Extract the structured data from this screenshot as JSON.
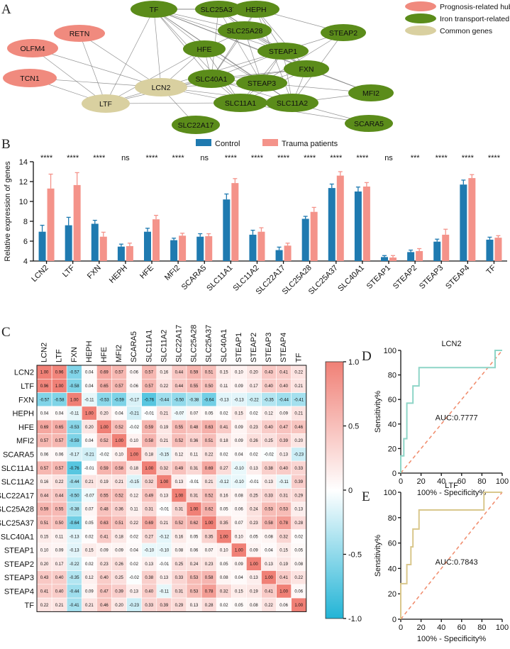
{
  "chart_data": [
    {
      "type": "network",
      "panel_label": "A",
      "legend": [
        {
          "label": "Prognosis-related hub genes",
          "color": "#f08a7e"
        },
        {
          "label": "Iron transport-related genes",
          "color": "#5b8c1a"
        },
        {
          "label": "Common genes",
          "color": "#d9d0a0"
        }
      ],
      "nodes": [
        {
          "id": "TF",
          "group": "iron"
        },
        {
          "id": "SLC25A37",
          "group": "iron"
        },
        {
          "id": "HEPH",
          "group": "iron"
        },
        {
          "id": "RETN",
          "group": "hub"
        },
        {
          "id": "SLC25A28",
          "group": "iron"
        },
        {
          "id": "STEAP2",
          "group": "iron"
        },
        {
          "id": "OLFM4",
          "group": "hub"
        },
        {
          "id": "HFE",
          "group": "iron"
        },
        {
          "id": "STEAP1",
          "group": "iron"
        },
        {
          "id": "TCN1",
          "group": "hub"
        },
        {
          "id": "LCN2",
          "group": "common"
        },
        {
          "id": "SLC40A1",
          "group": "iron"
        },
        {
          "id": "FXN",
          "group": "iron"
        },
        {
          "id": "STEAP3",
          "group": "iron"
        },
        {
          "id": "MFI2",
          "group": "iron"
        },
        {
          "id": "LTF",
          "group": "common"
        },
        {
          "id": "SLC11A1",
          "group": "iron"
        },
        {
          "id": "SLC11A2",
          "group": "iron"
        },
        {
          "id": "SLC22A17",
          "group": "iron"
        },
        {
          "id": "SCARA5",
          "group": "iron"
        }
      ],
      "edges": [
        [
          "RETN",
          "LCN2"
        ],
        [
          "RETN",
          "LTF"
        ],
        [
          "OLFM4",
          "LCN2"
        ],
        [
          "OLFM4",
          "LTF"
        ],
        [
          "TCN1",
          "LCN2"
        ],
        [
          "TCN1",
          "LTF"
        ],
        [
          "LCN2",
          "LTF"
        ],
        [
          "LCN2",
          "SLC22A17"
        ],
        [
          "LCN2",
          "HFE"
        ],
        [
          "LCN2",
          "SLC40A1"
        ],
        [
          "LCN2",
          "STEAP3"
        ],
        [
          "LCN2",
          "SLC11A1"
        ],
        [
          "LCN2",
          "SLC11A2"
        ],
        [
          "LCN2",
          "TF"
        ],
        [
          "LCN2",
          "FXN"
        ],
        [
          "LCN2",
          "STEAP1"
        ],
        [
          "LTF",
          "SLC11A1"
        ],
        [
          "LTF",
          "TF"
        ],
        [
          "LTF",
          "SLC40A1"
        ],
        [
          "LTF",
          "HFE"
        ],
        [
          "TF",
          "SLC25A37"
        ],
        [
          "TF",
          "HEPH"
        ],
        [
          "TF",
          "SLC25A28"
        ],
        [
          "TF",
          "HFE"
        ],
        [
          "TF",
          "SLC40A1"
        ],
        [
          "TF",
          "STEAP3"
        ],
        [
          "TF",
          "STEAP1"
        ],
        [
          "TF",
          "SLC11A1"
        ],
        [
          "TF",
          "SLC11A2"
        ],
        [
          "TF",
          "FXN"
        ],
        [
          "TF",
          "MFI2"
        ],
        [
          "SLC25A37",
          "HEPH"
        ],
        [
          "SLC25A37",
          "SLC25A28"
        ],
        [
          "SLC25A37",
          "STEAP1"
        ],
        [
          "SLC25A37",
          "FXN"
        ],
        [
          "SLC25A37",
          "SLC40A1"
        ],
        [
          "SLC25A37",
          "STEAP3"
        ],
        [
          "HEPH",
          "SLC25A28"
        ],
        [
          "HEPH",
          "STEAP1"
        ],
        [
          "HEPH",
          "STEAP2"
        ],
        [
          "HEPH",
          "FXN"
        ],
        [
          "HEPH",
          "SLC40A1"
        ],
        [
          "HEPH",
          "SLC11A2"
        ],
        [
          "SLC25A28",
          "STEAP1"
        ],
        [
          "SLC25A28",
          "FXN"
        ],
        [
          "SLC25A28",
          "SLC40A1"
        ],
        [
          "SLC25A28",
          "STEAP3"
        ],
        [
          "SLC25A28",
          "HFE"
        ],
        [
          "STEAP2",
          "STEAP1"
        ],
        [
          "STEAP2",
          "STEAP3"
        ],
        [
          "STEAP2",
          "SLC11A2"
        ],
        [
          "HFE",
          "SLC40A1"
        ],
        [
          "HFE",
          "STEAP3"
        ],
        [
          "HFE",
          "SLC11A1"
        ],
        [
          "STEAP1",
          "STEAP3"
        ],
        [
          "STEAP1",
          "SLC40A1"
        ],
        [
          "STEAP1",
          "FXN"
        ],
        [
          "STEAP1",
          "SLC11A2"
        ],
        [
          "STEAP1",
          "SLC11A1"
        ],
        [
          "SLC40A1",
          "STEAP3"
        ],
        [
          "SLC40A1",
          "SLC11A1"
        ],
        [
          "SLC40A1",
          "SLC11A2"
        ],
        [
          "SLC40A1",
          "FXN"
        ],
        [
          "FXN",
          "STEAP3"
        ],
        [
          "FXN",
          "SLC11A2"
        ],
        [
          "FXN",
          "SLC11A1"
        ],
        [
          "STEAP3",
          "SLC11A1"
        ],
        [
          "STEAP3",
          "SLC11A2"
        ],
        [
          "STEAP3",
          "MFI2"
        ],
        [
          "SLC11A1",
          "SLC11A2"
        ],
        [
          "SLC11A2",
          "MFI2"
        ],
        [
          "SLC11A2",
          "SCARA5"
        ],
        [
          "SLC11A1",
          "SCARA5"
        ],
        [
          "FXN",
          "MFI2"
        ]
      ]
    },
    {
      "type": "bar",
      "panel_label": "B",
      "ylabel": "Relative expression of genes",
      "ylim": [
        4,
        14
      ],
      "yticks": [
        4,
        6,
        8,
        10,
        12,
        14
      ],
      "categories": [
        "LCN2",
        "LTF",
        "FXN",
        "HEPH",
        "HFE",
        "MFI2",
        "SCARA5",
        "SLC11A1",
        "SLC11A2",
        "SLC22A17",
        "SLC25A28",
        "SLC25A37",
        "SLC40A1",
        "STEAP1",
        "STEAP2",
        "STEAP3",
        "STEAP4",
        "TF"
      ],
      "significance": [
        "****",
        "****",
        "****",
        "ns",
        "****",
        "****",
        "ns",
        "****",
        "****",
        "****",
        "****",
        "****",
        "****",
        "ns",
        "***",
        "****",
        "****",
        "****"
      ],
      "series": [
        {
          "name": "Control",
          "color": "#1f7ab0",
          "values": [
            6.95,
            7.6,
            7.75,
            5.45,
            6.95,
            6.1,
            6.45,
            10.2,
            6.65,
            5.1,
            8.25,
            11.35,
            11.0,
            4.4,
            4.9,
            5.95,
            11.7,
            6.15
          ],
          "errors": [
            0.65,
            0.8,
            0.35,
            0.25,
            0.35,
            0.2,
            0.3,
            0.55,
            0.45,
            0.3,
            0.25,
            0.4,
            0.45,
            0.15,
            0.2,
            0.25,
            0.45,
            0.25
          ]
        },
        {
          "name": "Trauma patients",
          "color": "#f4938a",
          "values": [
            11.3,
            11.65,
            6.45,
            5.5,
            8.2,
            6.55,
            6.5,
            11.85,
            6.95,
            5.55,
            8.95,
            12.6,
            11.5,
            4.35,
            5.0,
            6.65,
            12.35,
            6.35
          ],
          "errors": [
            1.45,
            1.25,
            0.45,
            0.3,
            0.4,
            0.25,
            0.25,
            0.45,
            0.4,
            0.25,
            0.45,
            0.4,
            0.4,
            0.2,
            0.25,
            0.55,
            0.35,
            0.2
          ]
        }
      ]
    },
    {
      "type": "heatmap",
      "panel_label": "C",
      "labels": [
        "LCN2",
        "LTF",
        "FXN",
        "HEPH",
        "HFE",
        "MFI2",
        "SCARA5",
        "SLC11A1",
        "SLC11A2",
        "SLC22A17",
        "SLC25A28",
        "SLC25A37",
        "SLC40A1",
        "STEAP1",
        "STEAP2",
        "STEAP3",
        "STEAP4",
        "TF"
      ],
      "values": [
        [
          1.0,
          0.96,
          -0.57,
          0.04,
          0.69,
          0.57,
          0.06,
          0.57,
          0.16,
          0.44,
          0.59,
          0.51,
          0.15,
          0.1,
          0.2,
          0.43,
          0.41,
          0.22
        ],
        [
          0.96,
          1.0,
          -0.58,
          0.04,
          0.65,
          0.57,
          0.06,
          0.57,
          0.22,
          0.44,
          0.55,
          0.5,
          0.11,
          0.09,
          0.17,
          0.4,
          0.4,
          0.21
        ],
        [
          -0.57,
          -0.58,
          1.0,
          -0.11,
          -0.53,
          -0.59,
          -0.17,
          -0.76,
          -0.44,
          -0.5,
          -0.38,
          -0.64,
          -0.13,
          -0.13,
          -0.22,
          -0.35,
          -0.44,
          -0.41
        ],
        [
          0.04,
          0.04,
          -0.11,
          1.0,
          0.2,
          0.04,
          -0.21,
          -0.01,
          0.21,
          -0.07,
          0.07,
          0.05,
          0.02,
          0.15,
          0.02,
          0.12,
          0.09,
          0.21
        ],
        [
          0.69,
          0.65,
          -0.53,
          0.2,
          1.0,
          0.52,
          -0.02,
          0.59,
          0.19,
          0.55,
          0.48,
          0.63,
          0.41,
          0.09,
          0.23,
          0.4,
          0.47,
          0.46
        ],
        [
          0.57,
          0.57,
          -0.59,
          0.04,
          0.52,
          1.0,
          0.1,
          0.58,
          0.21,
          0.52,
          0.36,
          0.51,
          0.18,
          0.09,
          0.26,
          0.25,
          0.39,
          0.2
        ],
        [
          0.06,
          0.06,
          -0.17,
          -0.21,
          -0.02,
          0.1,
          1.0,
          0.18,
          -0.15,
          0.12,
          0.11,
          0.22,
          0.02,
          0.04,
          0.02,
          -0.02,
          0.13,
          -0.23
        ],
        [
          0.57,
          0.57,
          -0.76,
          -0.01,
          0.59,
          0.58,
          0.18,
          1.0,
          0.32,
          0.49,
          0.31,
          0.69,
          0.27,
          -0.1,
          0.13,
          0.38,
          0.4,
          0.33
        ],
        [
          0.16,
          0.22,
          -0.44,
          0.21,
          0.19,
          0.21,
          -0.15,
          0.32,
          1.0,
          0.13,
          -0.01,
          0.21,
          -0.12,
          -0.1,
          -0.01,
          0.13,
          -0.11,
          0.39
        ],
        [
          0.44,
          0.44,
          -0.5,
          -0.07,
          0.55,
          0.52,
          0.12,
          0.49,
          0.13,
          1.0,
          0.31,
          0.52,
          0.16,
          0.08,
          0.25,
          0.33,
          0.31,
          0.29
        ],
        [
          0.59,
          0.55,
          -0.38,
          0.07,
          0.48,
          0.36,
          0.11,
          0.31,
          -0.01,
          0.31,
          1.0,
          0.62,
          0.05,
          0.06,
          0.24,
          0.53,
          0.53,
          0.13
        ],
        [
          0.51,
          0.5,
          -0.64,
          0.05,
          0.63,
          0.51,
          0.22,
          0.69,
          0.21,
          0.52,
          0.62,
          1.0,
          0.35,
          0.07,
          0.23,
          0.58,
          0.78,
          0.28
        ],
        [
          0.15,
          0.11,
          -0.13,
          0.02,
          0.41,
          0.18,
          0.02,
          0.27,
          -0.12,
          0.16,
          0.05,
          0.35,
          1.0,
          0.1,
          0.05,
          0.08,
          0.32,
          0.02
        ],
        [
          0.1,
          0.09,
          -0.13,
          0.15,
          0.09,
          0.09,
          0.04,
          -0.1,
          -0.1,
          0.08,
          0.06,
          0.07,
          0.1,
          1.0,
          0.09,
          0.04,
          0.15,
          0.05
        ],
        [
          0.2,
          0.17,
          -0.22,
          0.02,
          0.23,
          0.26,
          0.02,
          0.13,
          -0.01,
          0.25,
          0.24,
          0.23,
          0.05,
          0.09,
          1.0,
          0.13,
          0.19,
          0.08
        ],
        [
          0.43,
          0.4,
          -0.35,
          0.12,
          0.4,
          0.25,
          -0.02,
          0.38,
          0.13,
          0.33,
          0.53,
          0.58,
          0.08,
          0.04,
          0.13,
          1.0,
          0.41,
          0.22
        ],
        [
          0.41,
          0.4,
          -0.44,
          0.09,
          0.47,
          0.39,
          0.13,
          0.4,
          -0.11,
          0.31,
          0.53,
          0.78,
          0.32,
          0.15,
          0.19,
          0.41,
          1.0,
          0.06
        ],
        [
          0.22,
          0.21,
          -0.41,
          0.21,
          0.46,
          0.2,
          -0.23,
          0.33,
          0.39,
          0.29,
          0.13,
          0.28,
          0.02,
          0.05,
          0.08,
          0.22,
          0.06,
          1.0
        ]
      ],
      "colorbar_ticks": [
        "1.0",
        "0.5",
        "0",
        "-0.5",
        "-1.0"
      ],
      "colorbar_range": [
        -1,
        1
      ]
    },
    {
      "type": "roc",
      "panel_label": "D",
      "title": "LCN2",
      "xlabel": "100% - Specificity%",
      "ylabel": "Sensitivity%",
      "xticks": [
        0,
        20,
        40,
        60,
        80,
        100
      ],
      "yticks": [
        0,
        20,
        40,
        60,
        80,
        100
      ],
      "auc_label": "AUC:0.7777",
      "color": "#8ed5c7",
      "points": [
        [
          0,
          0
        ],
        [
          0,
          14
        ],
        [
          3,
          14
        ],
        [
          3,
          28
        ],
        [
          6,
          28
        ],
        [
          6,
          43
        ],
        [
          6,
          57
        ],
        [
          12,
          57
        ],
        [
          12,
          71
        ],
        [
          18,
          71
        ],
        [
          18,
          86
        ],
        [
          24,
          86
        ],
        [
          93,
          86
        ],
        [
          93,
          100
        ],
        [
          100,
          100
        ]
      ]
    },
    {
      "type": "roc",
      "panel_label": "E",
      "title": "LTF",
      "xlabel": "100% - Specificity%",
      "ylabel": "Sensitivity%",
      "xticks": [
        0,
        20,
        40,
        60,
        80,
        100
      ],
      "yticks": [
        0,
        20,
        40,
        60,
        80,
        100
      ],
      "auc_label": "AUC:0.7843",
      "color": "#d9c78c",
      "points": [
        [
          0,
          0
        ],
        [
          0,
          28
        ],
        [
          6,
          28
        ],
        [
          6,
          43
        ],
        [
          10,
          43
        ],
        [
          10,
          57
        ],
        [
          12,
          57
        ],
        [
          12,
          71
        ],
        [
          18,
          71
        ],
        [
          18,
          86
        ],
        [
          82,
          86
        ],
        [
          82,
          100
        ],
        [
          100,
          100
        ]
      ]
    }
  ]
}
